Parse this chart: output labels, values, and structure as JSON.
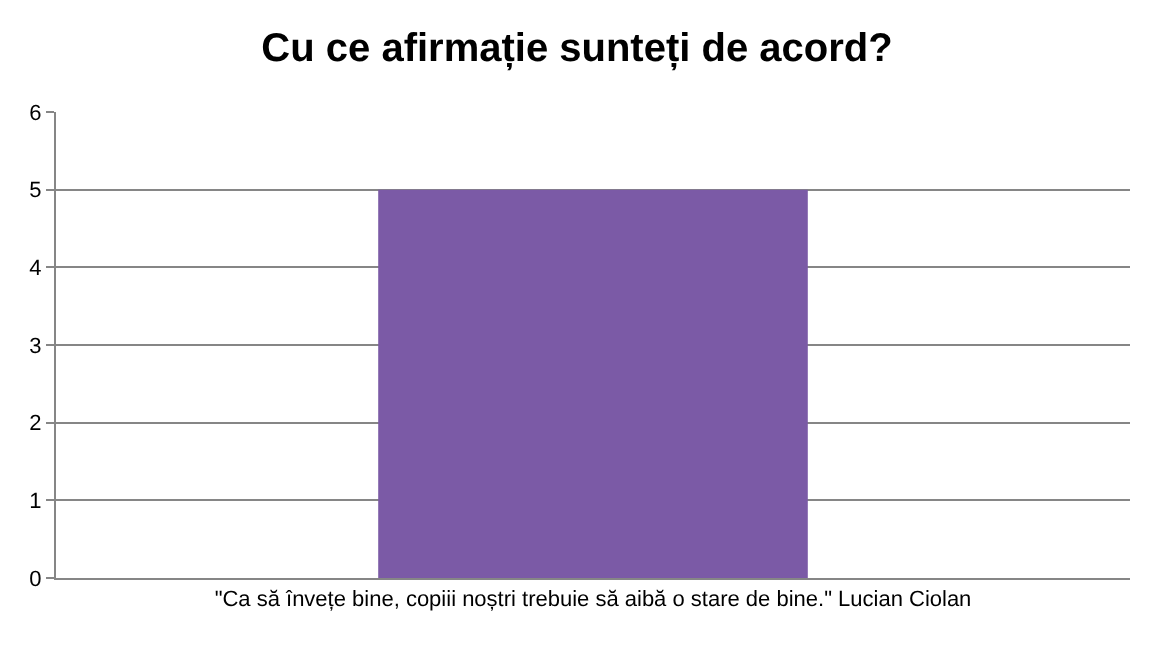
{
  "chart_data": {
    "type": "bar",
    "title": "Cu ce afirmație sunteți de acord?",
    "categories": [
      "\"Ca să învețe bine, copiii noștri trebuie să aibă o stare de bine.\" Lucian Ciolan"
    ],
    "values": [
      5
    ],
    "color": "#7b5aa6",
    "ylim": [
      0,
      6
    ],
    "yticks": [
      0,
      1,
      2,
      3,
      4,
      5,
      6
    ],
    "grid": "y",
    "legend": false
  }
}
